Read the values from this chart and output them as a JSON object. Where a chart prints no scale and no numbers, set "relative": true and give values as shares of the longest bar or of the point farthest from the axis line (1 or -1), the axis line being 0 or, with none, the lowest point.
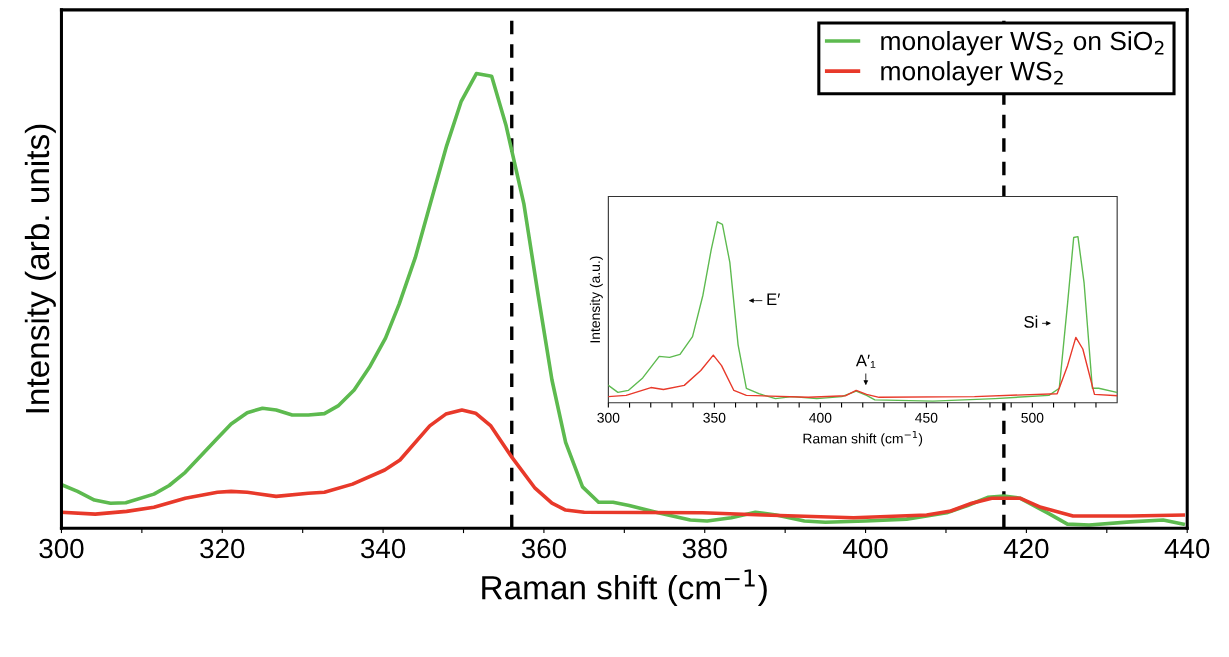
{
  "chart_data": [
    {
      "type": "line",
      "relative": true,
      "xlabel": "Raman shift (cm$^{−1}$)",
      "ylabel": "Intensity (arb. units)",
      "xlim": [
        300,
        440
      ],
      "xticks": [
        300,
        {
          "value": 310,
          "label": null
        },
        320,
        {
          "value": 330,
          "label": null
        },
        340,
        {
          "value": 350,
          "label": null
        },
        360,
        {
          "value": 370,
          "label": null
        },
        380,
        {
          "value": 390,
          "label": null
        },
        400,
        {
          "value": 410,
          "label": null
        },
        420,
        {
          "value": 430,
          "label": null
        },
        440
      ],
      "legend": "top right",
      "ref_lines": [
        {
          "axis": "x",
          "value": 356,
          "color": "#000000",
          "line_style": "dashed"
        },
        {
          "axis": "x",
          "value": 417.2,
          "color": "#000000",
          "line_style": "dashed"
        }
      ],
      "series": [
        {
          "name": "monolayer WS$_{2}$ on SiO$_{2}$",
          "color": "#5dba4f",
          "x": [
            300.1,
            302,
            304.1,
            306.1,
            308,
            311.5,
            313.4,
            315.4,
            319.4,
            321.1,
            323.1,
            325,
            326.7,
            328.7,
            330.7,
            332.7,
            334.4,
            336.4,
            338.3,
            340.3,
            342,
            344,
            346,
            347.9,
            349.7,
            351.6,
            353.5,
            355.3,
            357.5,
            359.3,
            361,
            362.7,
            364.8,
            366.8,
            368.6,
            370.6,
            374.2,
            378.2,
            380.3,
            383.3,
            386.3,
            388.9,
            392.4,
            395,
            400,
            405.1,
            410.1,
            412.7,
            415.2,
            417.2,
            419.2,
            422.8,
            425.1,
            427.8,
            432.9,
            437,
            439.5
          ],
          "values": [
            0.095,
            0.081,
            0.062,
            0.055,
            0.056,
            0.075,
            0.094,
            0.123,
            0.198,
            0.229,
            0.254,
            0.264,
            0.26,
            0.249,
            0.249,
            0.252,
            0.269,
            0.304,
            0.354,
            0.418,
            0.493,
            0.595,
            0.722,
            0.841,
            0.938,
            1.0,
            0.994,
            0.885,
            0.714,
            0.511,
            0.326,
            0.189,
            0.091,
            0.057,
            0.057,
            0.05,
            0.034,
            0.018,
            0.016,
            0.023,
            0.035,
            0.029,
            0.016,
            0.013,
            0.016,
            0.02,
            0.034,
            0.05,
            0.068,
            0.071,
            0.066,
            0.032,
            0.009,
            0.007,
            0.014,
            0.018,
            0.009
          ]
        },
        {
          "name": "monolayer WS$_{2}$",
          "color": "#e8392a",
          "x": [
            300,
            304.2,
            308.1,
            311.5,
            315.4,
            319.4,
            321.1,
            323.1,
            326.7,
            330.7,
            332.7,
            336.2,
            340.2,
            342.1,
            345.8,
            347.8,
            349.8,
            351.5,
            353.4,
            356.1,
            358.9,
            361,
            362.7,
            365,
            379.7,
            387.3,
            398.5,
            407.6,
            410.6,
            413.2,
            415.7,
            419.2,
            421.8,
            425.8,
            432.9,
            439.5
          ],
          "values": [
            0.035,
            0.031,
            0.037,
            0.046,
            0.066,
            0.079,
            0.081,
            0.079,
            0.07,
            0.077,
            0.079,
            0.097,
            0.128,
            0.15,
            0.225,
            0.251,
            0.26,
            0.253,
            0.225,
            0.154,
            0.088,
            0.055,
            0.04,
            0.035,
            0.034,
            0.029,
            0.023,
            0.029,
            0.038,
            0.055,
            0.066,
            0.066,
            0.046,
            0.027,
            0.027,
            0.029
          ]
        }
      ]
    },
    {
      "type": "line",
      "relative": true,
      "xlabel": "Raman shift (cm$^{−1}$)",
      "ylabel": "Intensity (a.u.)",
      "xlim": [
        300,
        540
      ],
      "xticks": [
        300,
        {
          "value": 310,
          "label": null
        },
        {
          "value": 320,
          "label": null
        },
        {
          "value": 330,
          "label": null
        },
        {
          "value": 340,
          "label": null
        },
        350,
        {
          "value": 360,
          "label": null
        },
        {
          "value": 370,
          "label": null
        },
        {
          "value": 380,
          "label": null
        },
        {
          "value": 390,
          "label": null
        },
        400,
        {
          "value": 410,
          "label": null
        },
        {
          "value": 420,
          "label": null
        },
        {
          "value": 430,
          "label": null
        },
        {
          "value": 440,
          "label": null
        },
        450,
        {
          "value": 460,
          "label": null
        },
        {
          "value": 470,
          "label": null
        },
        {
          "value": 480,
          "label": null
        },
        {
          "value": 490,
          "label": null
        },
        500,
        {
          "value": 510,
          "label": null
        },
        {
          "value": 520,
          "label": null
        },
        {
          "value": 530,
          "label": null
        }
      ],
      "annotations": [
        "E′",
        "A′₁",
        "Si"
      ],
      "series": [
        {
          "color": "#5dba4f",
          "x": [
            300,
            304.5,
            309.4,
            316.2,
            324,
            328.9,
            333.8,
            339.7,
            344.6,
            348.5,
            351.4,
            353.8,
            357.3,
            361.2,
            365.1,
            371,
            378.8,
            386.6,
            398.3,
            410.1,
            416.9,
            421.8,
            425.7,
            453.1,
            482.4,
            507.8,
            512.7,
            516.6,
            519.5,
            521.5,
            524.4,
            528.3,
            531.3,
            540
          ],
          "values": [
            0.096,
            0.057,
            0.068,
            0.137,
            0.256,
            0.251,
            0.267,
            0.365,
            0.594,
            0.845,
            1.0,
            0.986,
            0.776,
            0.32,
            0.08,
            0.05,
            0.023,
            0.034,
            0.023,
            0.034,
            0.064,
            0.041,
            0.016,
            0.009,
            0.023,
            0.041,
            0.08,
            0.548,
            0.913,
            0.918,
            0.662,
            0.08,
            0.08,
            0.057
          ]
        },
        {
          "color": "#e8392a",
          "x": [
            300,
            308.4,
            320.1,
            326,
            335.8,
            343.6,
            349.5,
            353.4,
            359.2,
            365.1,
            394.4,
            412,
            416.9,
            421.8,
            427.7,
            472.7,
            511.7,
            516.6,
            520.5,
            523.8,
            529.3,
            540
          ],
          "values": [
            0.034,
            0.041,
            0.084,
            0.073,
            0.096,
            0.178,
            0.263,
            0.205,
            0.068,
            0.041,
            0.03,
            0.039,
            0.068,
            0.046,
            0.03,
            0.034,
            0.05,
            0.205,
            0.361,
            0.297,
            0.046,
            0.039
          ]
        }
      ]
    }
  ]
}
